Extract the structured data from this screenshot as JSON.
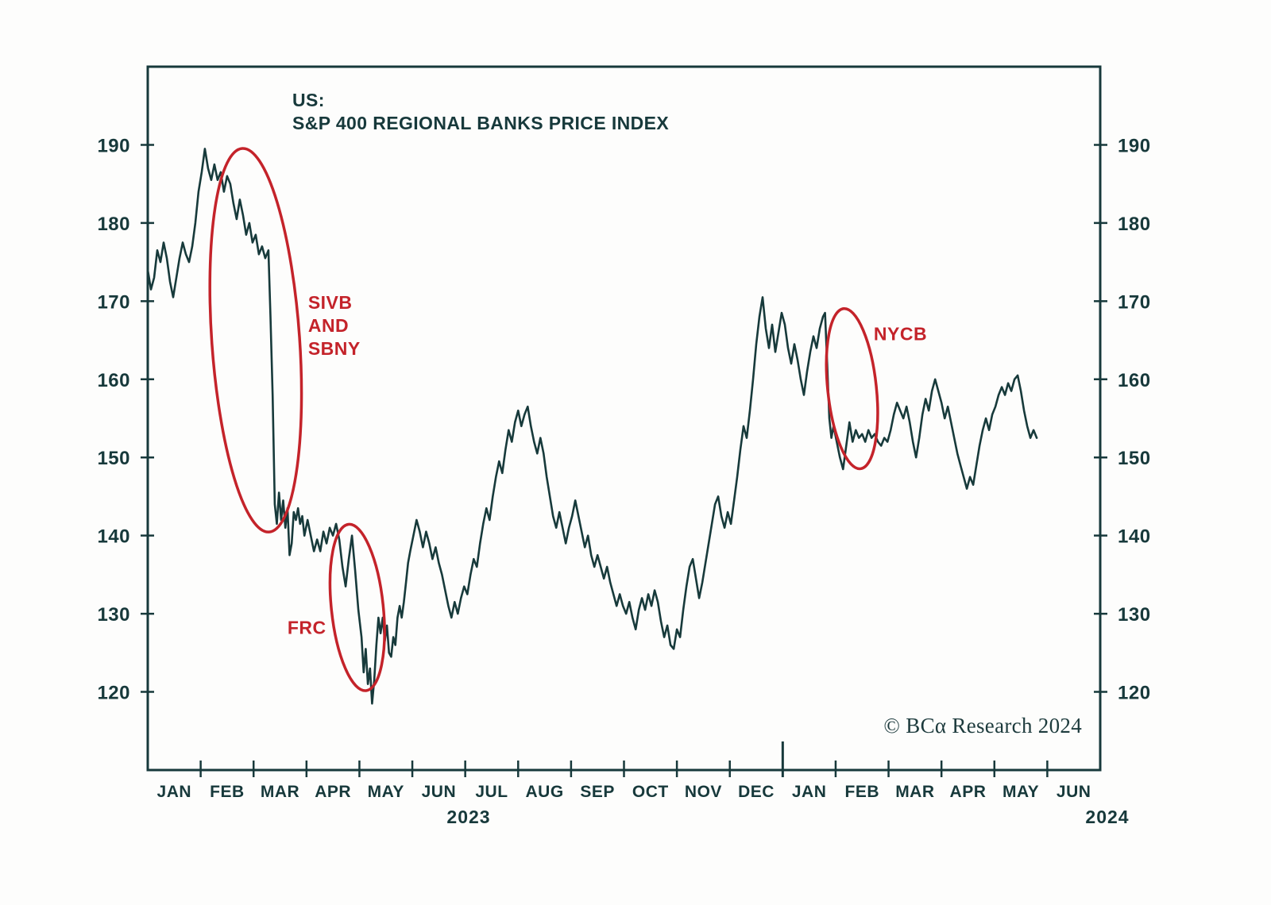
{
  "chart_data": {
    "type": "line",
    "title_line1": "US:",
    "title_line2": "S&P 400 REGIONAL BANKS PRICE INDEX",
    "copyright": "© BCα Research 2024",
    "grid": false,
    "xlim_months": [
      0,
      18
    ],
    "ylim": [
      110,
      200
    ],
    "y_ticks": [
      120,
      130,
      140,
      150,
      160,
      170,
      180,
      190
    ],
    "x_tick_labels": [
      "JAN",
      "FEB",
      "MAR",
      "APR",
      "MAY",
      "JUN",
      "JUL",
      "AUG",
      "SEP",
      "OCT",
      "NOV",
      "DEC",
      "JAN",
      "FEB",
      "MAR",
      "APR",
      "MAY",
      "JUN"
    ],
    "year_labels": [
      "2023",
      "2024"
    ],
    "year_tick_month": 12,
    "colors": {
      "line": "#173a3b",
      "text": "#17393b",
      "annotation": "#c4232a",
      "background": "#fdfdfc"
    },
    "series": [
      {
        "name": "S&P 400 Regional Banks Price Index",
        "points": [
          [
            0.0,
            174
          ],
          [
            0.06,
            171.5
          ],
          [
            0.12,
            173
          ],
          [
            0.18,
            176.5
          ],
          [
            0.24,
            175
          ],
          [
            0.3,
            177.5
          ],
          [
            0.36,
            175.5
          ],
          [
            0.42,
            172.5
          ],
          [
            0.48,
            170.5
          ],
          [
            0.54,
            173
          ],
          [
            0.6,
            175.5
          ],
          [
            0.66,
            177.5
          ],
          [
            0.72,
            176
          ],
          [
            0.78,
            175
          ],
          [
            0.84,
            177
          ],
          [
            0.9,
            180
          ],
          [
            0.96,
            184
          ],
          [
            1.02,
            186.5
          ],
          [
            1.08,
            189.5
          ],
          [
            1.14,
            187
          ],
          [
            1.2,
            185.5
          ],
          [
            1.26,
            187.5
          ],
          [
            1.32,
            185.5
          ],
          [
            1.38,
            186.5
          ],
          [
            1.44,
            184
          ],
          [
            1.5,
            186
          ],
          [
            1.56,
            185
          ],
          [
            1.62,
            182.5
          ],
          [
            1.68,
            180.5
          ],
          [
            1.74,
            183
          ],
          [
            1.8,
            181
          ],
          [
            1.86,
            178.5
          ],
          [
            1.92,
            180
          ],
          [
            1.98,
            177.5
          ],
          [
            2.04,
            178.5
          ],
          [
            2.1,
            176
          ],
          [
            2.16,
            177
          ],
          [
            2.22,
            175.5
          ],
          [
            2.28,
            176.5
          ],
          [
            2.32,
            168
          ],
          [
            2.36,
            158
          ],
          [
            2.4,
            144
          ],
          [
            2.44,
            141.5
          ],
          [
            2.48,
            145.5
          ],
          [
            2.52,
            142
          ],
          [
            2.56,
            144.5
          ],
          [
            2.6,
            141
          ],
          [
            2.64,
            143.5
          ],
          [
            2.68,
            137.5
          ],
          [
            2.72,
            139
          ],
          [
            2.76,
            143
          ],
          [
            2.8,
            142
          ],
          [
            2.84,
            143.5
          ],
          [
            2.88,
            141.5
          ],
          [
            2.92,
            142.5
          ],
          [
            2.96,
            140
          ],
          [
            3.02,
            142
          ],
          [
            3.08,
            140
          ],
          [
            3.14,
            138
          ],
          [
            3.2,
            139.5
          ],
          [
            3.26,
            138
          ],
          [
            3.32,
            140.5
          ],
          [
            3.38,
            139
          ],
          [
            3.44,
            141
          ],
          [
            3.5,
            140
          ],
          [
            3.56,
            141.5
          ],
          [
            3.62,
            139.5
          ],
          [
            3.68,
            136
          ],
          [
            3.74,
            133.5
          ],
          [
            3.8,
            137
          ],
          [
            3.86,
            140
          ],
          [
            3.92,
            135.5
          ],
          [
            3.98,
            130.5
          ],
          [
            4.04,
            127
          ],
          [
            4.08,
            122.5
          ],
          [
            4.12,
            125.5
          ],
          [
            4.16,
            121
          ],
          [
            4.2,
            123
          ],
          [
            4.24,
            118.5
          ],
          [
            4.28,
            121.5
          ],
          [
            4.32,
            126
          ],
          [
            4.36,
            129.5
          ],
          [
            4.4,
            127.5
          ],
          [
            4.44,
            129.5
          ],
          [
            4.48,
            126.5
          ],
          [
            4.52,
            128.5
          ],
          [
            4.56,
            125
          ],
          [
            4.6,
            124.5
          ],
          [
            4.64,
            127
          ],
          [
            4.68,
            126
          ],
          [
            4.72,
            129.5
          ],
          [
            4.76,
            131
          ],
          [
            4.8,
            129.5
          ],
          [
            4.84,
            131.5
          ],
          [
            4.88,
            134
          ],
          [
            4.92,
            136.5
          ],
          [
            4.96,
            138
          ],
          [
            5.02,
            140
          ],
          [
            5.08,
            142
          ],
          [
            5.14,
            140.5
          ],
          [
            5.2,
            138.5
          ],
          [
            5.26,
            140.5
          ],
          [
            5.32,
            139
          ],
          [
            5.38,
            137
          ],
          [
            5.44,
            138.5
          ],
          [
            5.5,
            136.5
          ],
          [
            5.56,
            135
          ],
          [
            5.62,
            133
          ],
          [
            5.68,
            131
          ],
          [
            5.74,
            129.5
          ],
          [
            5.8,
            131.5
          ],
          [
            5.86,
            130
          ],
          [
            5.92,
            132
          ],
          [
            5.98,
            133.5
          ],
          [
            6.04,
            132.5
          ],
          [
            6.1,
            135
          ],
          [
            6.16,
            137
          ],
          [
            6.22,
            136
          ],
          [
            6.28,
            139
          ],
          [
            6.34,
            141.5
          ],
          [
            6.4,
            143.5
          ],
          [
            6.46,
            142
          ],
          [
            6.52,
            145
          ],
          [
            6.58,
            147.5
          ],
          [
            6.64,
            149.5
          ],
          [
            6.7,
            148
          ],
          [
            6.76,
            151
          ],
          [
            6.82,
            153.5
          ],
          [
            6.88,
            152
          ],
          [
            6.94,
            154.5
          ],
          [
            7.0,
            156
          ],
          [
            7.06,
            154
          ],
          [
            7.12,
            155.5
          ],
          [
            7.18,
            156.5
          ],
          [
            7.24,
            154
          ],
          [
            7.3,
            152
          ],
          [
            7.36,
            150.5
          ],
          [
            7.42,
            152.5
          ],
          [
            7.48,
            150.5
          ],
          [
            7.54,
            147.5
          ],
          [
            7.6,
            145
          ],
          [
            7.66,
            142.5
          ],
          [
            7.72,
            141
          ],
          [
            7.78,
            143
          ],
          [
            7.84,
            141
          ],
          [
            7.9,
            139
          ],
          [
            7.96,
            141
          ],
          [
            8.02,
            142.5
          ],
          [
            8.08,
            144.5
          ],
          [
            8.14,
            142.5
          ],
          [
            8.2,
            140.5
          ],
          [
            8.26,
            138.5
          ],
          [
            8.32,
            140
          ],
          [
            8.38,
            137.5
          ],
          [
            8.44,
            136
          ],
          [
            8.5,
            137.5
          ],
          [
            8.56,
            136
          ],
          [
            8.62,
            134.5
          ],
          [
            8.68,
            136
          ],
          [
            8.74,
            134
          ],
          [
            8.8,
            132.5
          ],
          [
            8.86,
            131
          ],
          [
            8.92,
            132.5
          ],
          [
            8.98,
            131
          ],
          [
            9.04,
            130
          ],
          [
            9.1,
            131.5
          ],
          [
            9.16,
            129.5
          ],
          [
            9.22,
            128
          ],
          [
            9.28,
            130.5
          ],
          [
            9.34,
            132
          ],
          [
            9.4,
            130.5
          ],
          [
            9.46,
            132.5
          ],
          [
            9.52,
            131
          ],
          [
            9.58,
            133
          ],
          [
            9.64,
            131.5
          ],
          [
            9.7,
            129
          ],
          [
            9.76,
            127
          ],
          [
            9.82,
            128.5
          ],
          [
            9.88,
            126
          ],
          [
            9.94,
            125.5
          ],
          [
            10.0,
            128
          ],
          [
            10.06,
            127
          ],
          [
            10.12,
            130.5
          ],
          [
            10.18,
            133.5
          ],
          [
            10.24,
            136
          ],
          [
            10.3,
            137
          ],
          [
            10.36,
            134.5
          ],
          [
            10.42,
            132
          ],
          [
            10.48,
            134
          ],
          [
            10.54,
            136.5
          ],
          [
            10.6,
            139
          ],
          [
            10.66,
            141.5
          ],
          [
            10.72,
            144
          ],
          [
            10.78,
            145
          ],
          [
            10.84,
            142.5
          ],
          [
            10.9,
            141
          ],
          [
            10.96,
            143
          ],
          [
            11.02,
            141.5
          ],
          [
            11.08,
            144.5
          ],
          [
            11.14,
            147.5
          ],
          [
            11.2,
            151
          ],
          [
            11.26,
            154
          ],
          [
            11.32,
            152.5
          ],
          [
            11.38,
            156
          ],
          [
            11.44,
            160
          ],
          [
            11.5,
            164.5
          ],
          [
            11.56,
            168
          ],
          [
            11.62,
            170.5
          ],
          [
            11.68,
            166.5
          ],
          [
            11.74,
            164
          ],
          [
            11.8,
            167
          ],
          [
            11.86,
            163.5
          ],
          [
            11.92,
            166
          ],
          [
            11.98,
            168.5
          ],
          [
            12.04,
            167
          ],
          [
            12.1,
            164
          ],
          [
            12.16,
            162
          ],
          [
            12.22,
            164.5
          ],
          [
            12.28,
            162.5
          ],
          [
            12.34,
            160
          ],
          [
            12.4,
            158
          ],
          [
            12.46,
            161
          ],
          [
            12.52,
            163.5
          ],
          [
            12.58,
            165.5
          ],
          [
            12.64,
            164
          ],
          [
            12.7,
            166.5
          ],
          [
            12.76,
            168
          ],
          [
            12.8,
            168.5
          ],
          [
            12.84,
            162
          ],
          [
            12.88,
            155
          ],
          [
            12.92,
            152.5
          ],
          [
            12.96,
            154
          ],
          [
            13.02,
            152
          ],
          [
            13.08,
            150
          ],
          [
            13.14,
            148.5
          ],
          [
            13.2,
            151.5
          ],
          [
            13.26,
            154.5
          ],
          [
            13.32,
            152
          ],
          [
            13.38,
            153.5
          ],
          [
            13.44,
            152.5
          ],
          [
            13.5,
            153
          ],
          [
            13.56,
            152
          ],
          [
            13.62,
            153.5
          ],
          [
            13.68,
            152.5
          ],
          [
            13.74,
            153
          ],
          [
            13.8,
            152
          ],
          [
            13.86,
            151.5
          ],
          [
            13.92,
            152.5
          ],
          [
            13.98,
            152
          ],
          [
            14.04,
            153.5
          ],
          [
            14.1,
            155.5
          ],
          [
            14.16,
            157
          ],
          [
            14.22,
            156
          ],
          [
            14.28,
            155
          ],
          [
            14.34,
            156.5
          ],
          [
            14.4,
            154.5
          ],
          [
            14.46,
            152
          ],
          [
            14.52,
            150
          ],
          [
            14.58,
            152.5
          ],
          [
            14.64,
            155.5
          ],
          [
            14.7,
            157.5
          ],
          [
            14.76,
            156
          ],
          [
            14.82,
            158.5
          ],
          [
            14.88,
            160
          ],
          [
            14.94,
            158.5
          ],
          [
            15.0,
            157
          ],
          [
            15.06,
            155
          ],
          [
            15.12,
            156.5
          ],
          [
            15.18,
            154.5
          ],
          [
            15.24,
            152.5
          ],
          [
            15.3,
            150.5
          ],
          [
            15.36,
            149
          ],
          [
            15.42,
            147.5
          ],
          [
            15.48,
            146
          ],
          [
            15.54,
            147.5
          ],
          [
            15.6,
            146.5
          ],
          [
            15.66,
            149
          ],
          [
            15.72,
            151.5
          ],
          [
            15.78,
            153.5
          ],
          [
            15.84,
            155
          ],
          [
            15.9,
            153.5
          ],
          [
            15.96,
            155.5
          ],
          [
            16.02,
            156.5
          ],
          [
            16.08,
            158
          ],
          [
            16.14,
            159
          ],
          [
            16.2,
            158
          ],
          [
            16.26,
            159.5
          ],
          [
            16.32,
            158.5
          ],
          [
            16.38,
            160
          ],
          [
            16.44,
            160.5
          ],
          [
            16.5,
            158.5
          ],
          [
            16.56,
            156
          ],
          [
            16.62,
            154
          ],
          [
            16.68,
            152.5
          ],
          [
            16.74,
            153.5
          ],
          [
            16.8,
            152.5
          ]
        ]
      }
    ],
    "annotations": {
      "ellipses": [
        {
          "name": "sivb-sbny-ellipse",
          "t": 2.04,
          "v": 165,
          "rt": 0.83,
          "rv": 24.6,
          "rotate": -4
        },
        {
          "name": "frc-ellipse",
          "t": 3.96,
          "v": 130.8,
          "rt": 0.49,
          "rv": 10.7,
          "rotate": -6
        },
        {
          "name": "nycb-ellipse",
          "t": 13.31,
          "v": 158.8,
          "rt": 0.46,
          "rv": 10.3,
          "rotate": -6
        }
      ],
      "labels": [
        {
          "name": "sivb-sbny-label",
          "lines": [
            "SIVB",
            "AND",
            "SBNY"
          ],
          "t": 3.03,
          "v": 169
        },
        {
          "name": "frc-label",
          "lines": [
            "FRC"
          ],
          "t": 2.64,
          "v": 127.4
        },
        {
          "name": "nycb-label",
          "lines": [
            "NYCB"
          ],
          "t": 13.72,
          "v": 165
        }
      ]
    }
  }
}
